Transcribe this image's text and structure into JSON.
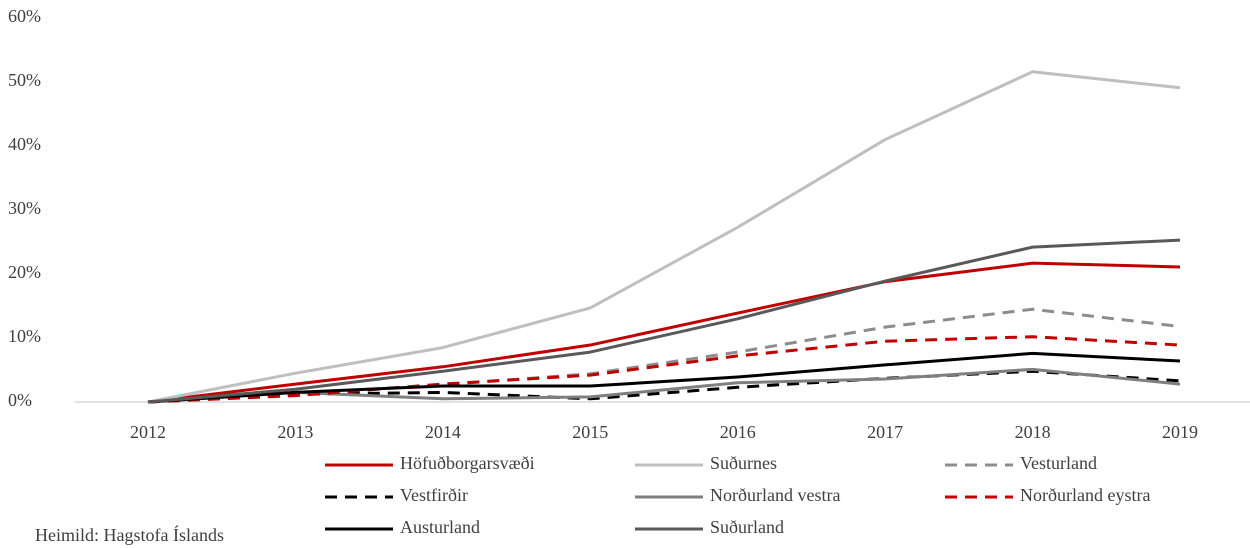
{
  "chart_data": {
    "type": "line",
    "categories": [
      "2012",
      "2013",
      "2014",
      "2015",
      "2016",
      "2017",
      "2018",
      "2019"
    ],
    "series": [
      {
        "name": "Höfuðborgarsvæði",
        "color": "#c00000",
        "dash": false,
        "values": [
          0,
          2.8,
          5.5,
          8.9,
          13.9,
          18.8,
          21.7,
          21.1
        ]
      },
      {
        "name": "Suðurnes",
        "color": "#bfbfbf",
        "dash": false,
        "values": [
          0,
          4.5,
          8.5,
          14.7,
          27.3,
          41.0,
          51.6,
          49.1
        ]
      },
      {
        "name": "Vesturland",
        "color": "#8c8c8c",
        "dash": true,
        "values": [
          0,
          1.3,
          2.7,
          4.4,
          7.8,
          11.7,
          14.5,
          11.8
        ]
      },
      {
        "name": "Vestfirðir",
        "color": "#000000",
        "dash": true,
        "values": [
          0,
          1.2,
          1.5,
          0.5,
          2.3,
          3.7,
          4.8,
          3.3
        ]
      },
      {
        "name": "Norðurland vestra",
        "color": "#7f7f7f",
        "dash": false,
        "values": [
          0,
          1.5,
          0.5,
          0.8,
          3.0,
          3.6,
          5.1,
          2.8
        ]
      },
      {
        "name": "Norðurland eystra",
        "color": "#c00000",
        "dash": true,
        "values": [
          0,
          1.0,
          2.8,
          4.2,
          7.2,
          9.5,
          10.2,
          8.9
        ]
      },
      {
        "name": "Austurland",
        "color": "#000000",
        "dash": false,
        "values": [
          0,
          1.5,
          2.5,
          2.5,
          3.9,
          5.8,
          7.6,
          6.4
        ]
      },
      {
        "name": "Suðurland",
        "color": "#595959",
        "dash": false,
        "values": [
          0,
          2.0,
          4.8,
          7.8,
          13.0,
          18.9,
          24.2,
          25.3
        ]
      }
    ],
    "ylim": [
      0,
      60
    ],
    "yticks": [
      {
        "value": 0,
        "label": "0%"
      },
      {
        "value": 10,
        "label": "10%"
      },
      {
        "value": 20,
        "label": "20%"
      },
      {
        "value": 30,
        "label": "30%"
      },
      {
        "value": 40,
        "label": "40%"
      },
      {
        "value": 50,
        "label": "50%"
      },
      {
        "value": 60,
        "label": "60%"
      }
    ],
    "grid": false,
    "legend": "bottom",
    "source": "Heimild: Hagstofa Íslands"
  }
}
